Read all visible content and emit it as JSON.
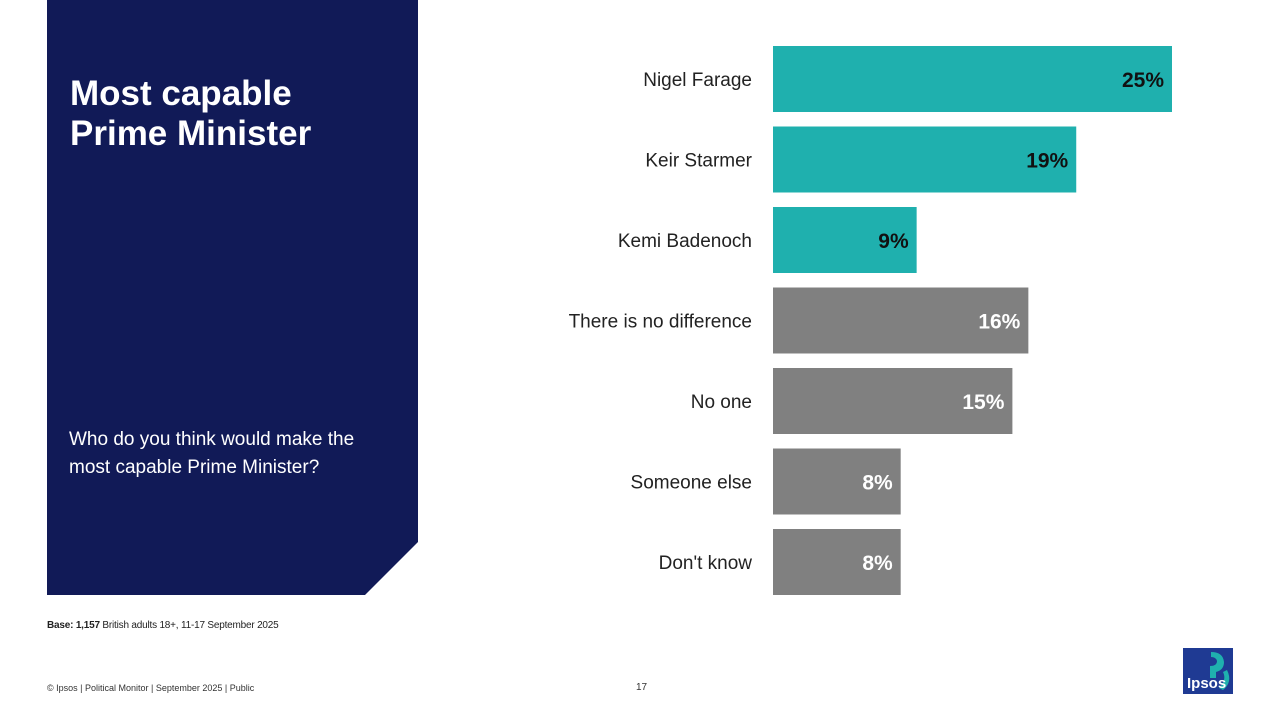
{
  "panel": {
    "title_lines": [
      "Most capable",
      "Prime Minister"
    ],
    "question": "Who do you think would make the most capable Prime Minister?"
  },
  "chart_data": {
    "type": "bar",
    "orientation": "horizontal",
    "categories": [
      "Nigel Farage",
      "Keir Starmer",
      "Kemi Badenoch",
      "There is no difference",
      "No one",
      "Someone else",
      "Don't know"
    ],
    "values": [
      25,
      19,
      9,
      16,
      15,
      8,
      8
    ],
    "data_labels": [
      "25%",
      "19%",
      "9%",
      "16%",
      "15%",
      "8%",
      "8%"
    ],
    "bar_colors": [
      "#1fb0ae",
      "#1fb0ae",
      "#1fb0ae",
      "#808080",
      "#808080",
      "#808080",
      "#808080"
    ],
    "label_colors": [
      "#111111",
      "#111111",
      "#111111",
      "#ffffff",
      "#ffffff",
      "#ffffff",
      "#ffffff"
    ],
    "xlim": [
      0,
      25
    ],
    "grid": false,
    "legend": "none"
  },
  "base_note": {
    "bold": "Base: 1,157",
    "text": " British adults 18+, 11-17 September 2025"
  },
  "footer": {
    "left": "© Ipsos | Political Monitor | September 2025 | Public",
    "page": "17"
  },
  "logo": {
    "text": "Ipsos",
    "bg": "#1f3a93",
    "accent": "#1fb0ae"
  }
}
